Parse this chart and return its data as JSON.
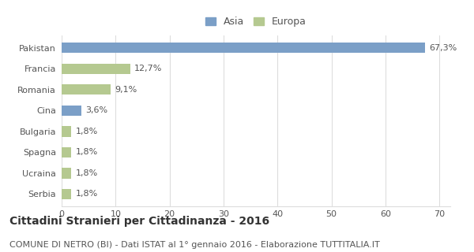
{
  "categories": [
    "Serbia",
    "Ucraina",
    "Spagna",
    "Bulgaria",
    "Cina",
    "Romania",
    "Francia",
    "Pakistan"
  ],
  "values": [
    1.8,
    1.8,
    1.8,
    1.8,
    3.6,
    9.1,
    12.7,
    67.3
  ],
  "labels": [
    "1,8%",
    "1,8%",
    "1,8%",
    "1,8%",
    "3,6%",
    "9,1%",
    "12,7%",
    "67,3%"
  ],
  "colors": [
    "#b5c990",
    "#b5c990",
    "#b5c990",
    "#b5c990",
    "#7b9fc7",
    "#b5c990",
    "#b5c990",
    "#7b9fc7"
  ],
  "legend_asia_color": "#7b9fc7",
  "legend_europa_color": "#b5c990",
  "xlim": [
    0,
    72
  ],
  "xticks": [
    0,
    10,
    20,
    30,
    40,
    50,
    60,
    70
  ],
  "title": "Cittadini Stranieri per Cittadinanza - 2016",
  "subtitle": "COMUNE DI NETRO (BI) - Dati ISTAT al 1° gennaio 2016 - Elaborazione TUTTITALIA.IT",
  "title_fontsize": 10,
  "subtitle_fontsize": 8,
  "bar_height": 0.5,
  "bg_color": "#ffffff",
  "grid_color": "#dddddd",
  "label_fontsize": 8,
  "tick_fontsize": 8,
  "legend_fontsize": 9,
  "text_color": "#555555",
  "title_color": "#333333"
}
